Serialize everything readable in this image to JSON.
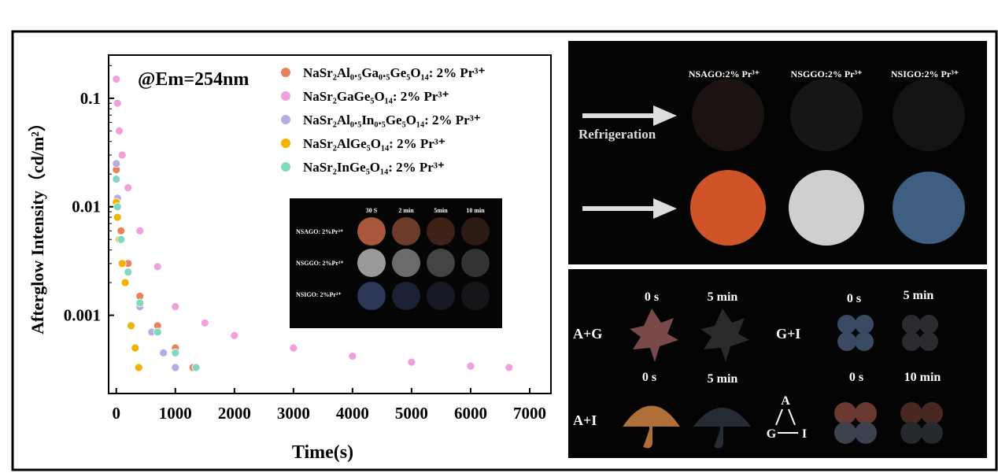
{
  "chart_data": {
    "type": "scatter",
    "xlabel": "Time(s)",
    "ylabel": "Afterglow Intensity（cd/m²）",
    "annotation": "@Em=254nm",
    "yscale": "log",
    "xlim": [
      -130,
      7360
    ],
    "ylim": [
      0.00019,
      0.25
    ],
    "xticks": [
      0,
      1000,
      2000,
      3000,
      4000,
      5000,
      6000,
      7000
    ],
    "yticks": [
      0.1,
      0.01,
      0.001
    ],
    "series": [
      {
        "name": "NaSr₂Al₀.₅Ga₀.₅Ge₅O₁₄:  2% Pr³⁺",
        "color": "#e8825a",
        "x": [
          0,
          20,
          80,
          200,
          400,
          700,
          1000,
          1300
        ],
        "values": [
          0.022,
          0.012,
          0.006,
          0.003,
          0.0015,
          0.0008,
          0.0005,
          0.00033
        ]
      },
      {
        "name": "NaSr₂GaGe₅O₁₄:  2% Pr³⁺",
        "color": "#f0a0dc",
        "x": [
          0,
          20,
          50,
          100,
          200,
          400,
          700,
          1000,
          1500,
          2000,
          3000,
          4000,
          5000,
          6000,
          6650
        ],
        "values": [
          0.15,
          0.09,
          0.05,
          0.03,
          0.015,
          0.006,
          0.0028,
          0.0012,
          0.00085,
          0.00065,
          0.0005,
          0.00042,
          0.00037,
          0.00034,
          0.00033
        ]
      },
      {
        "name": "NaSr₂Al₀.₅In₀.₅Ge₅O₁₄:  2% Pr³⁺",
        "color": "#b4aee0",
        "x": [
          0,
          20,
          80,
          200,
          400,
          600,
          800,
          1000
        ],
        "values": [
          0.025,
          0.012,
          0.005,
          0.0025,
          0.0012,
          0.0007,
          0.00045,
          0.00033
        ]
      },
      {
        "name": "NaSr₂AlGe₅O₁₄:  2% Pr³⁺",
        "color": "#f5b100",
        "x": [
          0,
          20,
          50,
          100,
          150,
          250,
          320,
          380
        ],
        "values": [
          0.011,
          0.008,
          0.005,
          0.003,
          0.002,
          0.0008,
          0.0005,
          0.00033
        ]
      },
      {
        "name": "NaSr₂InGe₅O₁₄:  2% Pr³⁺",
        "color": "#7fd8c0",
        "x": [
          0,
          20,
          80,
          200,
          400,
          700,
          1000,
          1350
        ],
        "values": [
          0.018,
          0.01,
          0.005,
          0.0025,
          0.0013,
          0.0007,
          0.00045,
          0.00033
        ]
      }
    ]
  },
  "inset": {
    "columns": [
      "30 S",
      "2 min",
      "5min",
      "10 min"
    ],
    "rows": [
      "NSAGO: 2%Pr³⁺",
      "NSGGO: 2%Pr³⁺",
      "NSIGO: 2%Pr³⁺"
    ]
  },
  "panel_top": {
    "columns": [
      "NSAGO:2% Pr³⁺",
      "NSGGO:2% Pr³⁺",
      "NSIGO:2% Pr³⁺"
    ],
    "label": "Refrigeration"
  },
  "panel_bottom": {
    "times": [
      "0 s",
      "5 min",
      "0 s",
      "5 min",
      "0 s",
      "5 min",
      "0 s",
      "10 min"
    ],
    "labels": [
      "A+G",
      "G+I",
      "A+I"
    ],
    "triangle": [
      "A",
      "G",
      "I"
    ]
  }
}
